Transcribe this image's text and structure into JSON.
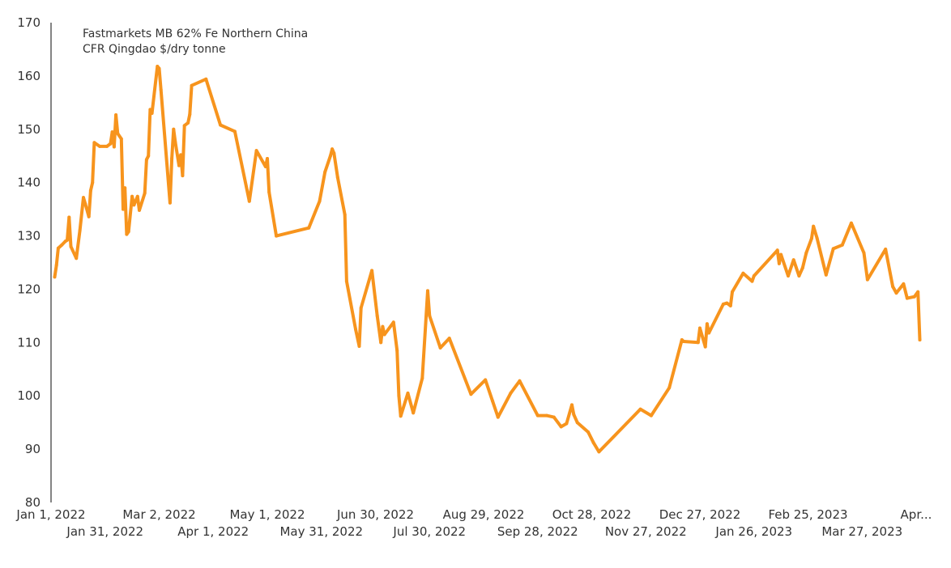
{
  "chart_data": {
    "type": "line",
    "title": "",
    "annotation_lines": [
      "Fastmarkets MB 62% Fe Northern China",
      "CFR Qingdao $/dry tonne"
    ],
    "xlabel": "",
    "ylabel": "",
    "ylim": [
      80,
      170
    ],
    "xlim": [
      "2022-01-01",
      "2023-04-26"
    ],
    "y_ticks": [
      "80",
      "90",
      "100",
      "110",
      "120",
      "130",
      "140",
      "150",
      "160",
      "170"
    ],
    "x_ticks": [
      {
        "date": "2022-01-01",
        "label": "Jan 1, 2022"
      },
      {
        "date": "2022-01-31",
        "label": "Jan 31, 2022"
      },
      {
        "date": "2022-03-02",
        "label": "Mar 2, 2022"
      },
      {
        "date": "2022-04-01",
        "label": "Apr 1, 2022"
      },
      {
        "date": "2022-05-01",
        "label": "May 1, 2022"
      },
      {
        "date": "2022-05-31",
        "label": "May 31, 2022"
      },
      {
        "date": "2022-06-30",
        "label": "Jun 30, 2022"
      },
      {
        "date": "2022-07-30",
        "label": "Jul 30, 2022"
      },
      {
        "date": "2022-08-29",
        "label": "Aug 29, 2022"
      },
      {
        "date": "2022-09-28",
        "label": "Sep 28, 2022"
      },
      {
        "date": "2022-10-28",
        "label": "Oct 28, 2022"
      },
      {
        "date": "2022-11-27",
        "label": "Nov 27, 2022"
      },
      {
        "date": "2022-12-27",
        "label": "Dec 27, 2022"
      },
      {
        "date": "2023-01-26",
        "label": "Jan 26, 2023"
      },
      {
        "date": "2023-02-25",
        "label": "Feb 25, 2023"
      },
      {
        "date": "2023-03-27",
        "label": "Mar 27, 2023"
      },
      {
        "date": "2023-04-26",
        "label": "Apr..."
      }
    ],
    "grid": false,
    "legend": "none",
    "color": "#F7941D",
    "series": [
      {
        "points": [
          [
            "2022-01-03",
            122.3
          ],
          [
            "2022-01-04",
            124.5
          ],
          [
            "2022-01-05",
            127.7
          ],
          [
            "2022-01-07",
            128.3
          ],
          [
            "2022-01-09",
            129.0
          ],
          [
            "2022-01-10",
            129.2
          ],
          [
            "2022-01-11",
            133.5
          ],
          [
            "2022-01-12",
            128.0
          ],
          [
            "2022-01-15",
            125.8
          ],
          [
            "2022-01-17",
            131.0
          ],
          [
            "2022-01-19",
            137.2
          ],
          [
            "2022-01-20",
            136.0
          ],
          [
            "2022-01-22",
            133.6
          ],
          [
            "2022-01-23",
            138.5
          ],
          [
            "2022-01-24",
            140.0
          ],
          [
            "2022-01-25",
            147.5
          ],
          [
            "2022-01-28",
            146.8
          ],
          [
            "2022-02-01",
            146.8
          ],
          [
            "2022-02-03",
            147.3
          ],
          [
            "2022-02-04",
            149.5
          ],
          [
            "2022-02-05",
            146.7
          ],
          [
            "2022-02-06",
            152.7
          ],
          [
            "2022-02-07",
            149.2
          ],
          [
            "2022-02-09",
            148.2
          ],
          [
            "2022-02-10",
            135.0
          ],
          [
            "2022-02-11",
            139.0
          ],
          [
            "2022-02-12",
            130.3
          ],
          [
            "2022-02-13",
            130.8
          ],
          [
            "2022-02-15",
            137.4
          ],
          [
            "2022-02-16",
            135.8
          ],
          [
            "2022-02-18",
            137.4
          ],
          [
            "2022-02-19",
            134.8
          ],
          [
            "2022-02-22",
            138.0
          ],
          [
            "2022-02-23",
            144.3
          ],
          [
            "2022-02-24",
            145.0
          ],
          [
            "2022-02-25",
            153.7
          ],
          [
            "2022-02-26",
            153.0
          ],
          [
            "2022-03-01",
            161.8
          ],
          [
            "2022-03-02",
            161.4
          ],
          [
            "2022-03-03",
            157.4
          ],
          [
            "2022-03-08",
            136.2
          ],
          [
            "2022-03-09",
            144.5
          ],
          [
            "2022-03-10",
            150.0
          ],
          [
            "2022-03-11",
            147.5
          ],
          [
            "2022-03-13",
            143.2
          ],
          [
            "2022-03-14",
            145.2
          ],
          [
            "2022-03-15",
            141.3
          ],
          [
            "2022-03-16",
            150.7
          ],
          [
            "2022-03-18",
            151.2
          ],
          [
            "2022-03-19",
            152.8
          ],
          [
            "2022-03-20",
            158.2
          ],
          [
            "2022-03-28",
            159.4
          ],
          [
            "2022-04-05",
            150.8
          ],
          [
            "2022-04-13",
            149.6
          ],
          [
            "2022-04-21",
            136.5
          ],
          [
            "2022-04-25",
            146.0
          ],
          [
            "2022-04-30",
            143.0
          ],
          [
            "2022-05-01",
            144.5
          ],
          [
            "2022-05-02",
            138.2
          ],
          [
            "2022-05-06",
            130.0
          ],
          [
            "2022-05-24",
            131.5
          ],
          [
            "2022-05-30",
            136.5
          ],
          [
            "2022-06-02",
            142.0
          ],
          [
            "2022-06-05",
            145.0
          ],
          [
            "2022-06-06",
            146.3
          ],
          [
            "2022-06-07",
            145.5
          ],
          [
            "2022-06-09",
            141.0
          ],
          [
            "2022-06-13",
            134.0
          ],
          [
            "2022-06-14",
            121.5
          ],
          [
            "2022-06-19",
            112.5
          ],
          [
            "2022-06-21",
            109.3
          ],
          [
            "2022-06-22",
            116.5
          ],
          [
            "2022-06-28",
            123.5
          ],
          [
            "2022-07-01",
            115.0
          ],
          [
            "2022-07-03",
            110.0
          ],
          [
            "2022-07-04",
            113.0
          ],
          [
            "2022-07-05",
            111.5
          ],
          [
            "2022-07-10",
            113.8
          ],
          [
            "2022-07-12",
            108.5
          ],
          [
            "2022-07-13",
            100.0
          ],
          [
            "2022-07-14",
            96.2
          ],
          [
            "2022-07-18",
            100.5
          ],
          [
            "2022-07-21",
            96.8
          ],
          [
            "2022-07-26",
            103.3
          ],
          [
            "2022-07-29",
            119.7
          ],
          [
            "2022-07-30",
            115.0
          ],
          [
            "2022-08-05",
            109.0
          ],
          [
            "2022-08-10",
            110.8
          ],
          [
            "2022-08-22",
            100.3
          ],
          [
            "2022-08-30",
            103.0
          ],
          [
            "2022-09-03",
            99.0
          ],
          [
            "2022-09-06",
            96.0
          ],
          [
            "2022-09-13",
            100.5
          ],
          [
            "2022-09-18",
            102.8
          ],
          [
            "2022-09-28",
            96.3
          ],
          [
            "2022-10-03",
            96.3
          ],
          [
            "2022-10-07",
            96.0
          ],
          [
            "2022-10-11",
            94.2
          ],
          [
            "2022-10-14",
            94.8
          ],
          [
            "2022-10-17",
            98.3
          ],
          [
            "2022-10-18",
            96.5
          ],
          [
            "2022-10-20",
            95.0
          ],
          [
            "2022-10-26",
            93.2
          ],
          [
            "2022-10-29",
            91.2
          ],
          [
            "2022-11-01",
            89.5
          ],
          [
            "2022-11-24",
            97.5
          ],
          [
            "2022-11-30",
            96.3
          ],
          [
            "2022-12-10",
            101.5
          ],
          [
            "2022-12-17",
            110.5
          ],
          [
            "2022-12-18",
            110.2
          ],
          [
            "2022-12-26",
            110.0
          ],
          [
            "2022-12-27",
            112.7
          ],
          [
            "2022-12-30",
            109.2
          ],
          [
            "2022-12-31",
            113.5
          ],
          [
            "2023-01-01",
            111.8
          ],
          [
            "2023-01-09",
            117.2
          ],
          [
            "2023-01-11",
            117.4
          ],
          [
            "2023-01-13",
            116.9
          ],
          [
            "2023-01-14",
            119.5
          ],
          [
            "2023-01-20",
            123.0
          ],
          [
            "2023-01-25",
            121.5
          ],
          [
            "2023-01-26",
            122.5
          ],
          [
            "2023-02-08",
            127.3
          ],
          [
            "2023-02-09",
            124.8
          ],
          [
            "2023-02-10",
            126.5
          ],
          [
            "2023-02-14",
            122.5
          ],
          [
            "2023-02-17",
            125.5
          ],
          [
            "2023-02-20",
            122.5
          ],
          [
            "2023-02-22",
            124.0
          ],
          [
            "2023-02-24",
            126.8
          ],
          [
            "2023-02-27",
            129.5
          ],
          [
            "2023-02-28",
            131.8
          ],
          [
            "2023-03-02",
            129.6
          ],
          [
            "2023-03-07",
            122.7
          ],
          [
            "2023-03-11",
            127.6
          ],
          [
            "2023-03-16",
            128.3
          ],
          [
            "2023-03-21",
            132.4
          ],
          [
            "2023-03-28",
            126.8
          ],
          [
            "2023-03-30",
            121.8
          ],
          [
            "2023-04-09",
            127.5
          ],
          [
            "2023-04-13",
            120.5
          ],
          [
            "2023-04-15",
            119.3
          ],
          [
            "2023-04-19",
            121.0
          ],
          [
            "2023-04-21",
            118.3
          ],
          [
            "2023-04-25",
            118.6
          ],
          [
            "2023-04-27",
            119.5
          ],
          [
            "2023-04-28",
            110.5
          ]
        ]
      }
    ]
  }
}
